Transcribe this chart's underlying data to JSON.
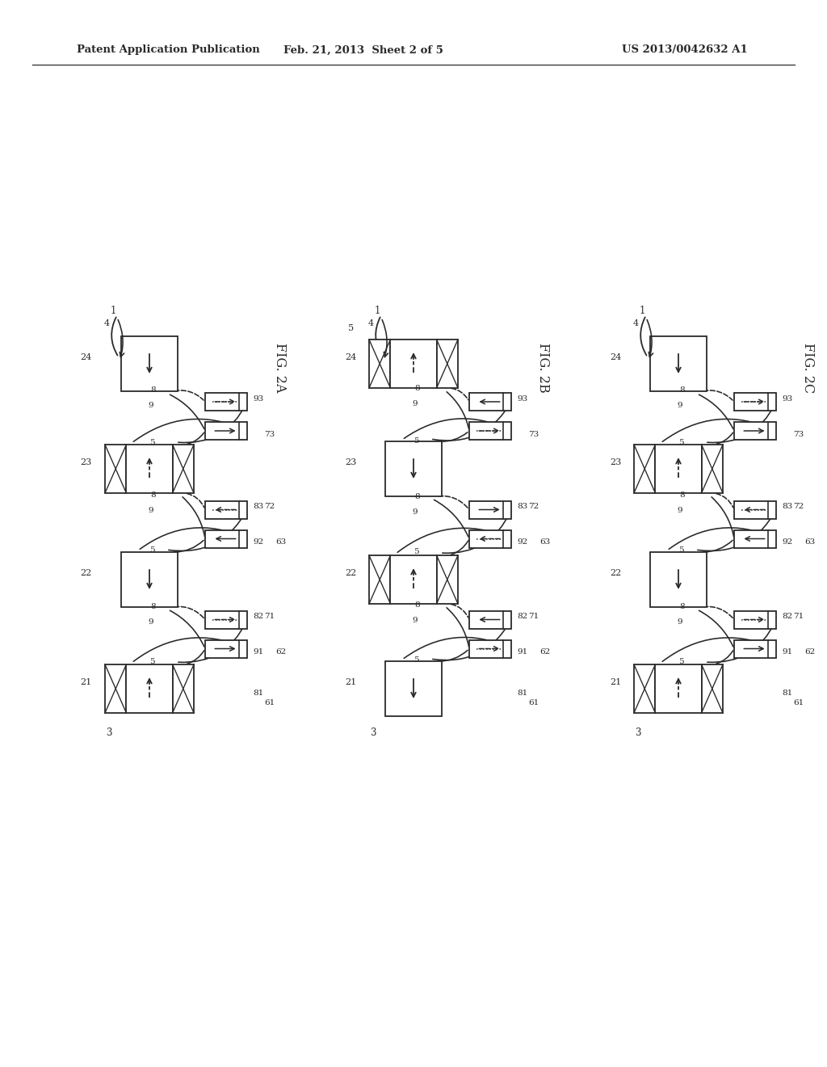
{
  "header_left": "Patent Application Publication",
  "header_center": "Feb. 21, 2013  Sheet 2 of 5",
  "header_right": "US 2013/0042632 A1",
  "background": "#ffffff",
  "ink": "#2a2a2a",
  "diagrams": [
    {
      "label": "FIG. 2A",
      "boxes": [
        {
          "type": "plain",
          "arrow": "down",
          "num": "24"
        },
        {
          "type": "magnet",
          "arrow": "up_dashed",
          "num": "23"
        },
        {
          "type": "plain",
          "arrow": "down",
          "num": "22"
        },
        {
          "type": "magnet",
          "arrow": "up_dashed",
          "num": "21"
        }
      ],
      "valve_rows": [
        {
          "upper": "dots_right",
          "lower": "arrow_right",
          "nums": [
            "93",
            "73"
          ]
        },
        {
          "upper": "dots_left",
          "lower": "arrow_left",
          "nums": [
            "92",
            "83",
            "72",
            "63"
          ]
        },
        {
          "upper": "dots_right",
          "lower": "arrow_right",
          "nums": [
            "91",
            "82",
            "71",
            "62"
          ]
        }
      ],
      "ref1_label": "1",
      "ref4_label": "4",
      "ref3_label": "3",
      "has_label5": false
    },
    {
      "label": "FIG. 2B",
      "boxes": [
        {
          "type": "magnet",
          "arrow": "up_dashed",
          "num": "24"
        },
        {
          "type": "plain",
          "arrow": "down",
          "num": "23"
        },
        {
          "type": "magnet",
          "arrow": "up_dashed",
          "num": "22"
        },
        {
          "type": "plain",
          "arrow": "down",
          "num": "21"
        }
      ],
      "valve_rows": [
        {
          "upper": "arrow_left",
          "lower": "dots_right",
          "nums": [
            "93",
            "73"
          ]
        },
        {
          "upper": "arrow_right",
          "lower": "dots_left",
          "nums": [
            "92",
            "83",
            "72",
            "63"
          ]
        },
        {
          "upper": "arrow_left",
          "lower": "dots_right",
          "nums": [
            "91",
            "82",
            "71",
            "62"
          ]
        }
      ],
      "ref1_label": "1",
      "ref4_label": "4",
      "ref3_label": "3",
      "has_label5": true
    },
    {
      "label": "FIG. 2C",
      "boxes": [
        {
          "type": "plain",
          "arrow": "down",
          "num": "24"
        },
        {
          "type": "magnet",
          "arrow": "up_dashed",
          "num": "23"
        },
        {
          "type": "plain",
          "arrow": "down",
          "num": "22"
        },
        {
          "type": "magnet",
          "arrow": "up_dashed",
          "num": "21"
        }
      ],
      "valve_rows": [
        {
          "upper": "dots_right",
          "lower": "arrow_right",
          "nums": [
            "93",
            "73"
          ]
        },
        {
          "upper": "dots_left",
          "lower": "arrow_left",
          "nums": [
            "92",
            "83",
            "72",
            "63"
          ]
        },
        {
          "upper": "dots_right",
          "lower": "arrow_right",
          "nums": [
            "91",
            "82",
            "71",
            "62"
          ]
        }
      ],
      "ref1_label": "1",
      "ref4_label": "4",
      "ref3_label": "3",
      "has_label5": false
    }
  ]
}
